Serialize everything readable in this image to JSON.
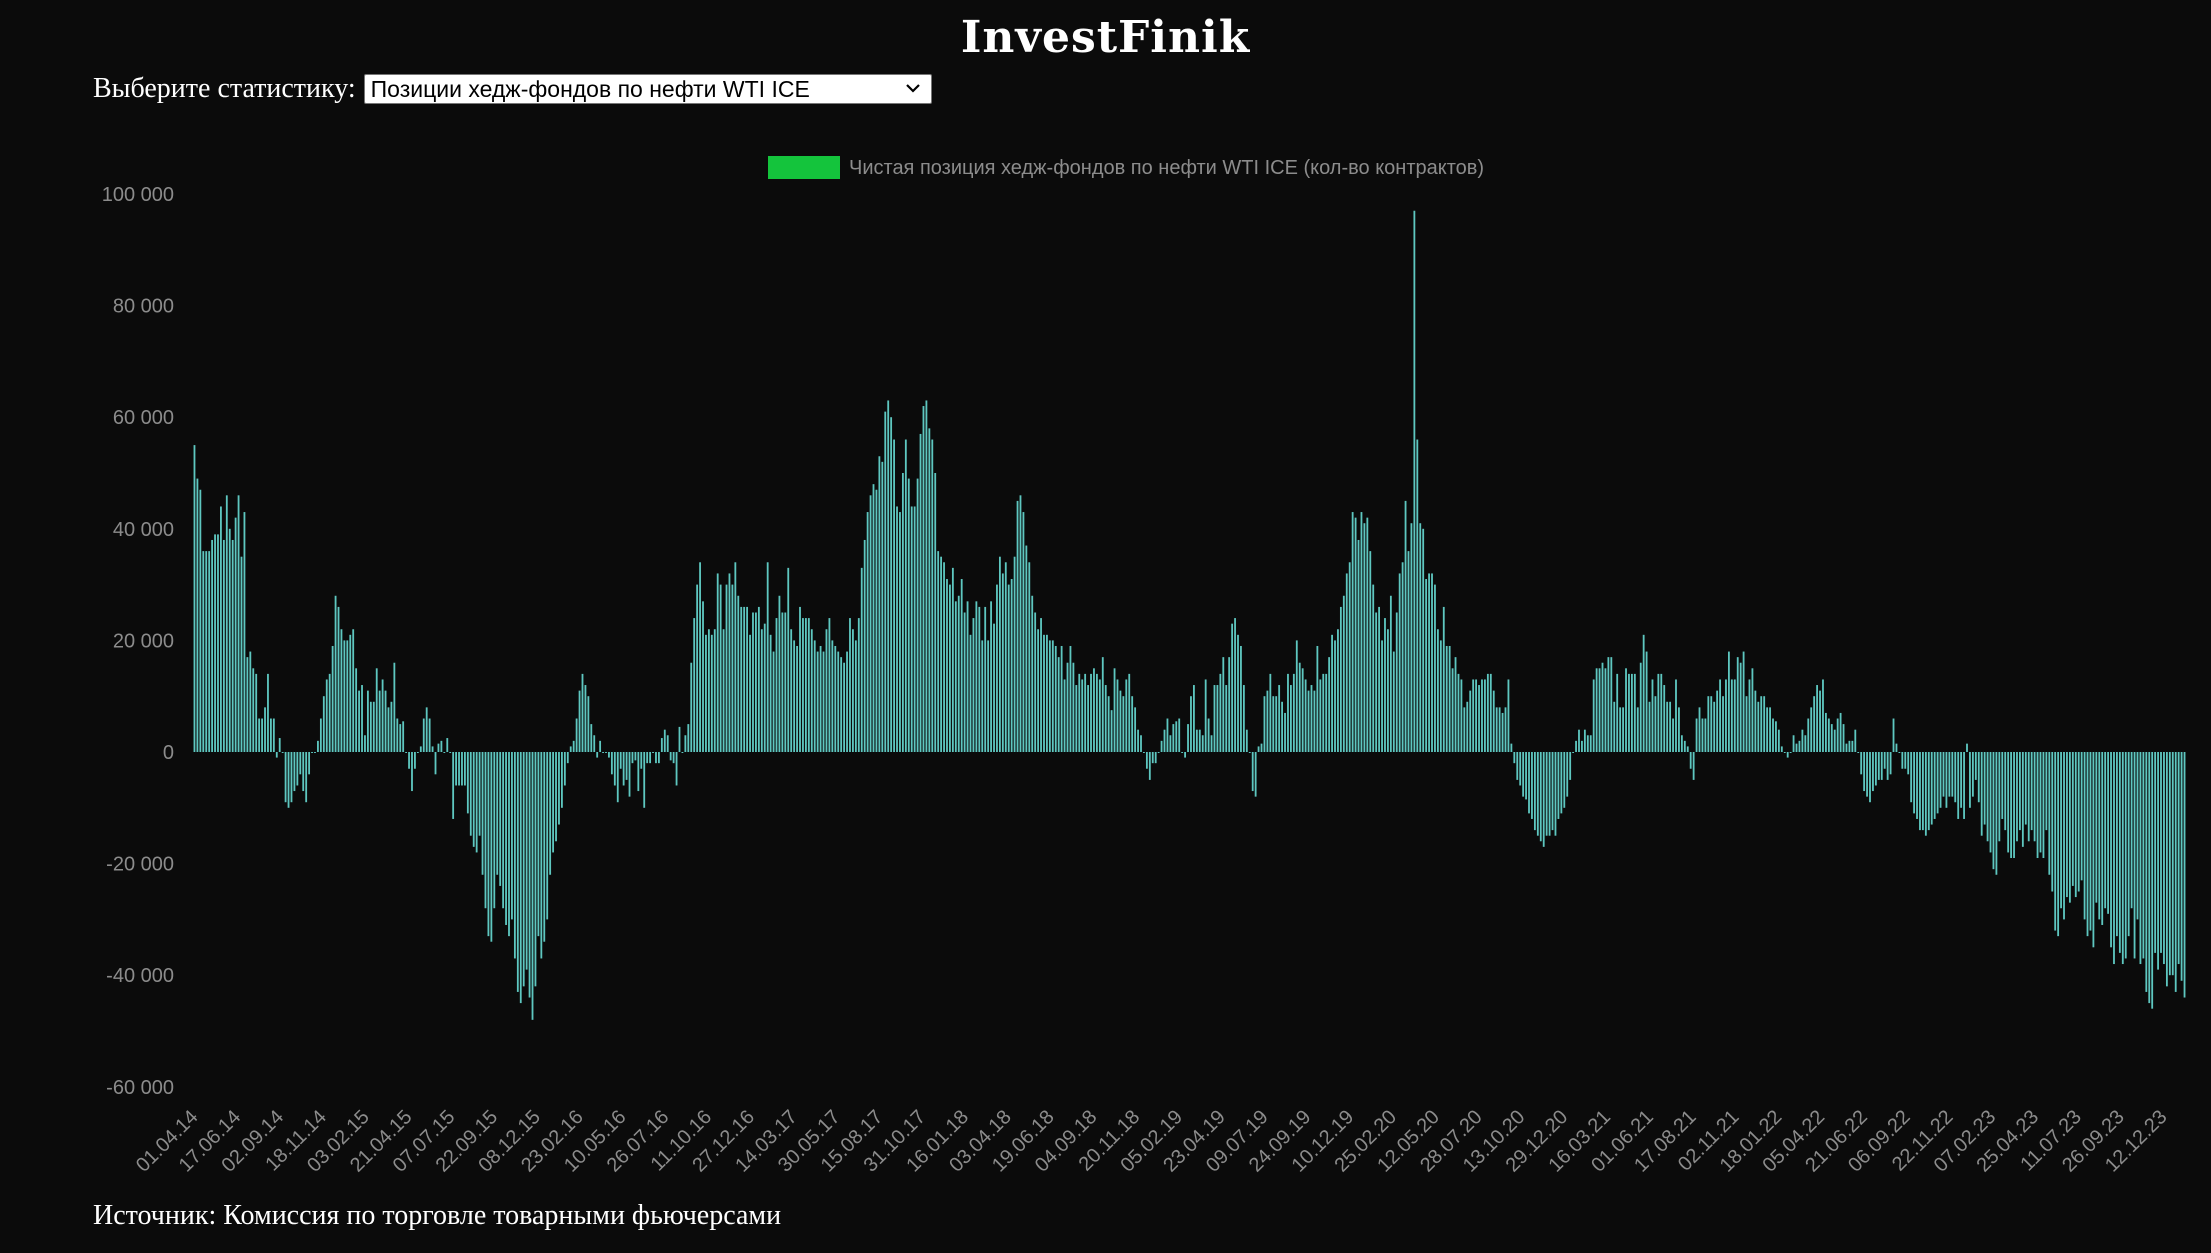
{
  "header": {
    "title": "InvestFinik"
  },
  "selector": {
    "label": "Выберите статистику:",
    "selected": "Позиции хедж-фондов по нефти WTI ICE"
  },
  "footer": {
    "source": "Источник: Комиссия по торговле товарными фьючерсами"
  },
  "colors": {
    "bar": "#5ec7c0",
    "legend_swatch": "#14c43c",
    "background": "#0b0b0b"
  },
  "chart_data": {
    "type": "bar",
    "legend_position": "top-center",
    "grid": false,
    "ylim": [
      -60000,
      100000
    ],
    "y_ticks": [
      100000,
      80000,
      60000,
      40000,
      20000,
      0,
      -20000,
      -40000,
      -60000
    ],
    "y_tick_labels": [
      "100 000",
      "80 000",
      "60 000",
      "40 000",
      "20 000",
      "0",
      "-20 000",
      "-40 000",
      "-60 000"
    ],
    "x_tick_labels": [
      "01.04.14",
      "17.06.14",
      "02.09.14",
      "18.11.14",
      "03.02.15",
      "21.04.15",
      "07.07.15",
      "22.09.15",
      "08.12.15",
      "23.02.16",
      "10.05.16",
      "26.07.16",
      "11.10.16",
      "27.12.16",
      "14.03.17",
      "30.05.17",
      "15.08.17",
      "31.10.17",
      "16.01.18",
      "03.04.18",
      "19.06.18",
      "04.09.18",
      "20.11.18",
      "05.02.19",
      "23.04.19",
      "09.07.19",
      "24.09.19",
      "10.12.19",
      "25.02.20",
      "12.05.20",
      "28.07.20",
      "13.10.20",
      "29.12.20",
      "16.03.21",
      "01.06.21",
      "17.08.21",
      "02.11.21",
      "18.01.22",
      "05.04.22",
      "21.06.22",
      "06.09.22",
      "22.11.22",
      "07.02.23",
      "25.04.23",
      "11.07.23",
      "26.09.23",
      "12.12.23"
    ],
    "series": [
      {
        "name": "Чистая позиция хедж-фондов по нефти WTI ICE (кол-во контрактов)",
        "values": [
          55000,
          49000,
          47000,
          36000,
          36000,
          36000,
          38000,
          39000,
          39000,
          44000,
          38000,
          46000,
          40000,
          38000,
          42000,
          46000,
          35000,
          43000,
          17000,
          18000,
          15000,
          14000,
          6000,
          6000,
          8000,
          14000,
          6000,
          6000,
          -1000,
          2500,
          0,
          -9000,
          -10000,
          -9000,
          -7000,
          -6000,
          -4000,
          -7000,
          -9000,
          -4000,
          0,
          0,
          2000,
          6000,
          10000,
          13000,
          14000,
          19000,
          28000,
          26000,
          22000,
          20000,
          20000,
          21000,
          22000,
          15000,
          11000,
          12000,
          3000,
          11000,
          9000,
          9000,
          15000,
          11000,
          13000,
          11000,
          8000,
          9000,
          16000,
          6000,
          5000,
          5500,
          0,
          -3000,
          -7000,
          -3000,
          0,
          1000,
          6000,
          8000,
          6000,
          1000,
          -4000,
          1500,
          2000,
          0,
          2500,
          0,
          -12000,
          -6000,
          -6000,
          -6000,
          -6000,
          -11000,
          -15000,
          -17000,
          -18000,
          -15000,
          -22000,
          -28000,
          -33000,
          -34000,
          -28000,
          -22000,
          -24000,
          -28000,
          -31000,
          -33000,
          -30000,
          -37000,
          -43000,
          -45000,
          -42000,
          -39000,
          -44000,
          -48000,
          -42000,
          -33000,
          -37000,
          -34000,
          -30000,
          -22000,
          -18000,
          -16000,
          -13000,
          -10000,
          -6000,
          -2000,
          1000,
          2000,
          6000,
          11000,
          14000,
          12000,
          10000,
          5000,
          3000,
          -1000,
          2000,
          0,
          0,
          -1000,
          -4000,
          -6000,
          -9000,
          -3000,
          -6000,
          -5000,
          -8000,
          -2000,
          -1500,
          -7000,
          -3000,
          -10000,
          -2000,
          -2000,
          0,
          -2000,
          -2000,
          2500,
          4000,
          3000,
          -1500,
          -2000,
          -6000,
          4500,
          0,
          3000,
          5000,
          16000,
          24000,
          30000,
          34000,
          27000,
          21000,
          22000,
          21000,
          22000,
          32000,
          30000,
          22000,
          30000,
          32000,
          30000,
          34000,
          28000,
          26000,
          26000,
          26000,
          21000,
          25000,
          25000,
          26000,
          22000,
          23000,
          34000,
          21000,
          18000,
          24000,
          28000,
          25000,
          25000,
          33000,
          22000,
          20000,
          19000,
          26000,
          24000,
          24000,
          24000,
          22000,
          20000,
          18000,
          19000,
          18000,
          22000,
          24000,
          20000,
          19000,
          18000,
          17000,
          16000,
          18000,
          24000,
          22000,
          20000,
          24000,
          33000,
          38000,
          43000,
          46000,
          48000,
          47000,
          53000,
          52000,
          61000,
          63000,
          60000,
          56000,
          44000,
          43000,
          50000,
          56000,
          49000,
          44000,
          44000,
          49000,
          57000,
          62000,
          63000,
          58000,
          56000,
          50000,
          36000,
          35000,
          34000,
          31000,
          30000,
          33000,
          27000,
          28000,
          31000,
          25000,
          27000,
          21000,
          24000,
          27000,
          26000,
          20000,
          26000,
          20000,
          27000,
          23000,
          30000,
          35000,
          32000,
          34000,
          30000,
          31000,
          35000,
          45000,
          46000,
          43000,
          37000,
          34000,
          28000,
          25000,
          22000,
          24000,
          21000,
          21000,
          20000,
          20000,
          19000,
          17000,
          19000,
          13000,
          16000,
          19000,
          16000,
          12000,
          14000,
          13000,
          14000,
          12000,
          14000,
          15000,
          14000,
          13000,
          17000,
          12000,
          10000,
          7500,
          15000,
          13000,
          11000,
          10000,
          13000,
          14000,
          10000,
          8000,
          4000,
          3000,
          0,
          -3000,
          -5000,
          -2000,
          -2000,
          0,
          2000,
          4000,
          6000,
          3000,
          5000,
          5500,
          6000,
          0,
          -1000,
          5000,
          10000,
          12000,
          4000,
          4000,
          3000,
          13000,
          6000,
          3000,
          12000,
          12000,
          14000,
          17000,
          12000,
          17000,
          23000,
          24000,
          21000,
          19000,
          12000,
          4000,
          0,
          -7000,
          -8000,
          1000,
          1500,
          10000,
          11000,
          14000,
          10000,
          10000,
          12000,
          9000,
          7000,
          14000,
          12000,
          14000,
          20000,
          16000,
          15000,
          13000,
          11000,
          12000,
          11000,
          19000,
          13000,
          14000,
          14000,
          17000,
          21000,
          20000,
          22000,
          26000,
          28000,
          32000,
          34000,
          43000,
          42000,
          38000,
          43000,
          41000,
          42000,
          36000,
          30000,
          25000,
          26000,
          20000,
          24000,
          22000,
          28000,
          18000,
          25000,
          32000,
          34000,
          45000,
          36000,
          41000,
          97000,
          56000,
          41000,
          40000,
          31000,
          32000,
          32000,
          30000,
          22000,
          20000,
          26000,
          19000,
          19000,
          15000,
          17000,
          14000,
          13000,
          8000,
          9000,
          11000,
          13000,
          13000,
          12000,
          13000,
          13000,
          14000,
          14000,
          11000,
          8000,
          8000,
          7000,
          8000,
          13000,
          1500,
          -2000,
          -5000,
          -6000,
          -8000,
          -8500,
          -11000,
          -12000,
          -14000,
          -15000,
          -16000,
          -17000,
          -15000,
          -15000,
          -14000,
          -15000,
          -12000,
          -11000,
          -10000,
          -8000,
          -5000,
          0,
          2000,
          4000,
          2000,
          4000,
          3000,
          3000,
          13000,
          15000,
          15000,
          16000,
          15000,
          17000,
          17000,
          9000,
          14000,
          8000,
          8000,
          15000,
          14000,
          14000,
          14000,
          8000,
          16000,
          21000,
          18000,
          9000,
          13000,
          10000,
          14000,
          14000,
          12000,
          9000,
          9000,
          6000,
          13000,
          8000,
          3000,
          2000,
          1000,
          -3000,
          -5000,
          6000,
          8000,
          6000,
          6000,
          10000,
          10000,
          9000,
          11000,
          13000,
          10000,
          13000,
          18000,
          13000,
          13000,
          17000,
          16000,
          18000,
          10000,
          13000,
          15000,
          11000,
          9000,
          10000,
          10000,
          8000,
          8000,
          6000,
          5500,
          4000,
          1000,
          0,
          -1000,
          0,
          3000,
          1500,
          2000,
          4000,
          3000,
          6000,
          8000,
          10000,
          12000,
          11000,
          13000,
          7000,
          6000,
          5000,
          4000,
          6000,
          7000,
          5000,
          1500,
          2000,
          2000,
          4000,
          0,
          -4000,
          -7000,
          -8000,
          -9000,
          -7000,
          -6000,
          -5000,
          -5000,
          -3000,
          -5000,
          -4000,
          6000,
          1500,
          0,
          -3000,
          -3000,
          -4000,
          -9000,
          -11000,
          -12000,
          -14000,
          -14000,
          -15000,
          -14000,
          -13000,
          -12000,
          -11000,
          -10000,
          -8000,
          -10000,
          -8000,
          -8000,
          -9000,
          -12000,
          -10000,
          -12000,
          1500,
          -10000,
          -8000,
          -5000,
          -9000,
          -15000,
          -13000,
          -16000,
          -18000,
          -21000,
          -22000,
          -16000,
          -12000,
          -14000,
          -18000,
          -19000,
          -19000,
          -16000,
          -14000,
          -17000,
          -13000,
          -16000,
          -14000,
          -16000,
          -19000,
          -18000,
          -19000,
          -14000,
          -22000,
          -25000,
          -32000,
          -33000,
          -28000,
          -30000,
          -26000,
          -27000,
          -24000,
          -26000,
          -25000,
          -23000,
          -30000,
          -33000,
          -32000,
          -35000,
          -27000,
          -30000,
          -31000,
          -28000,
          -29000,
          -35000,
          -38000,
          -33000,
          -36000,
          -38000,
          -37000,
          -33000,
          -28000,
          -37000,
          -30000,
          -38000,
          -37000,
          -43000,
          -45000,
          -46000,
          -36000,
          -39000,
          -36000,
          -38000,
          -42000,
          -40000,
          -40000,
          -43000,
          -38000,
          -41000,
          -44000
        ]
      }
    ]
  }
}
